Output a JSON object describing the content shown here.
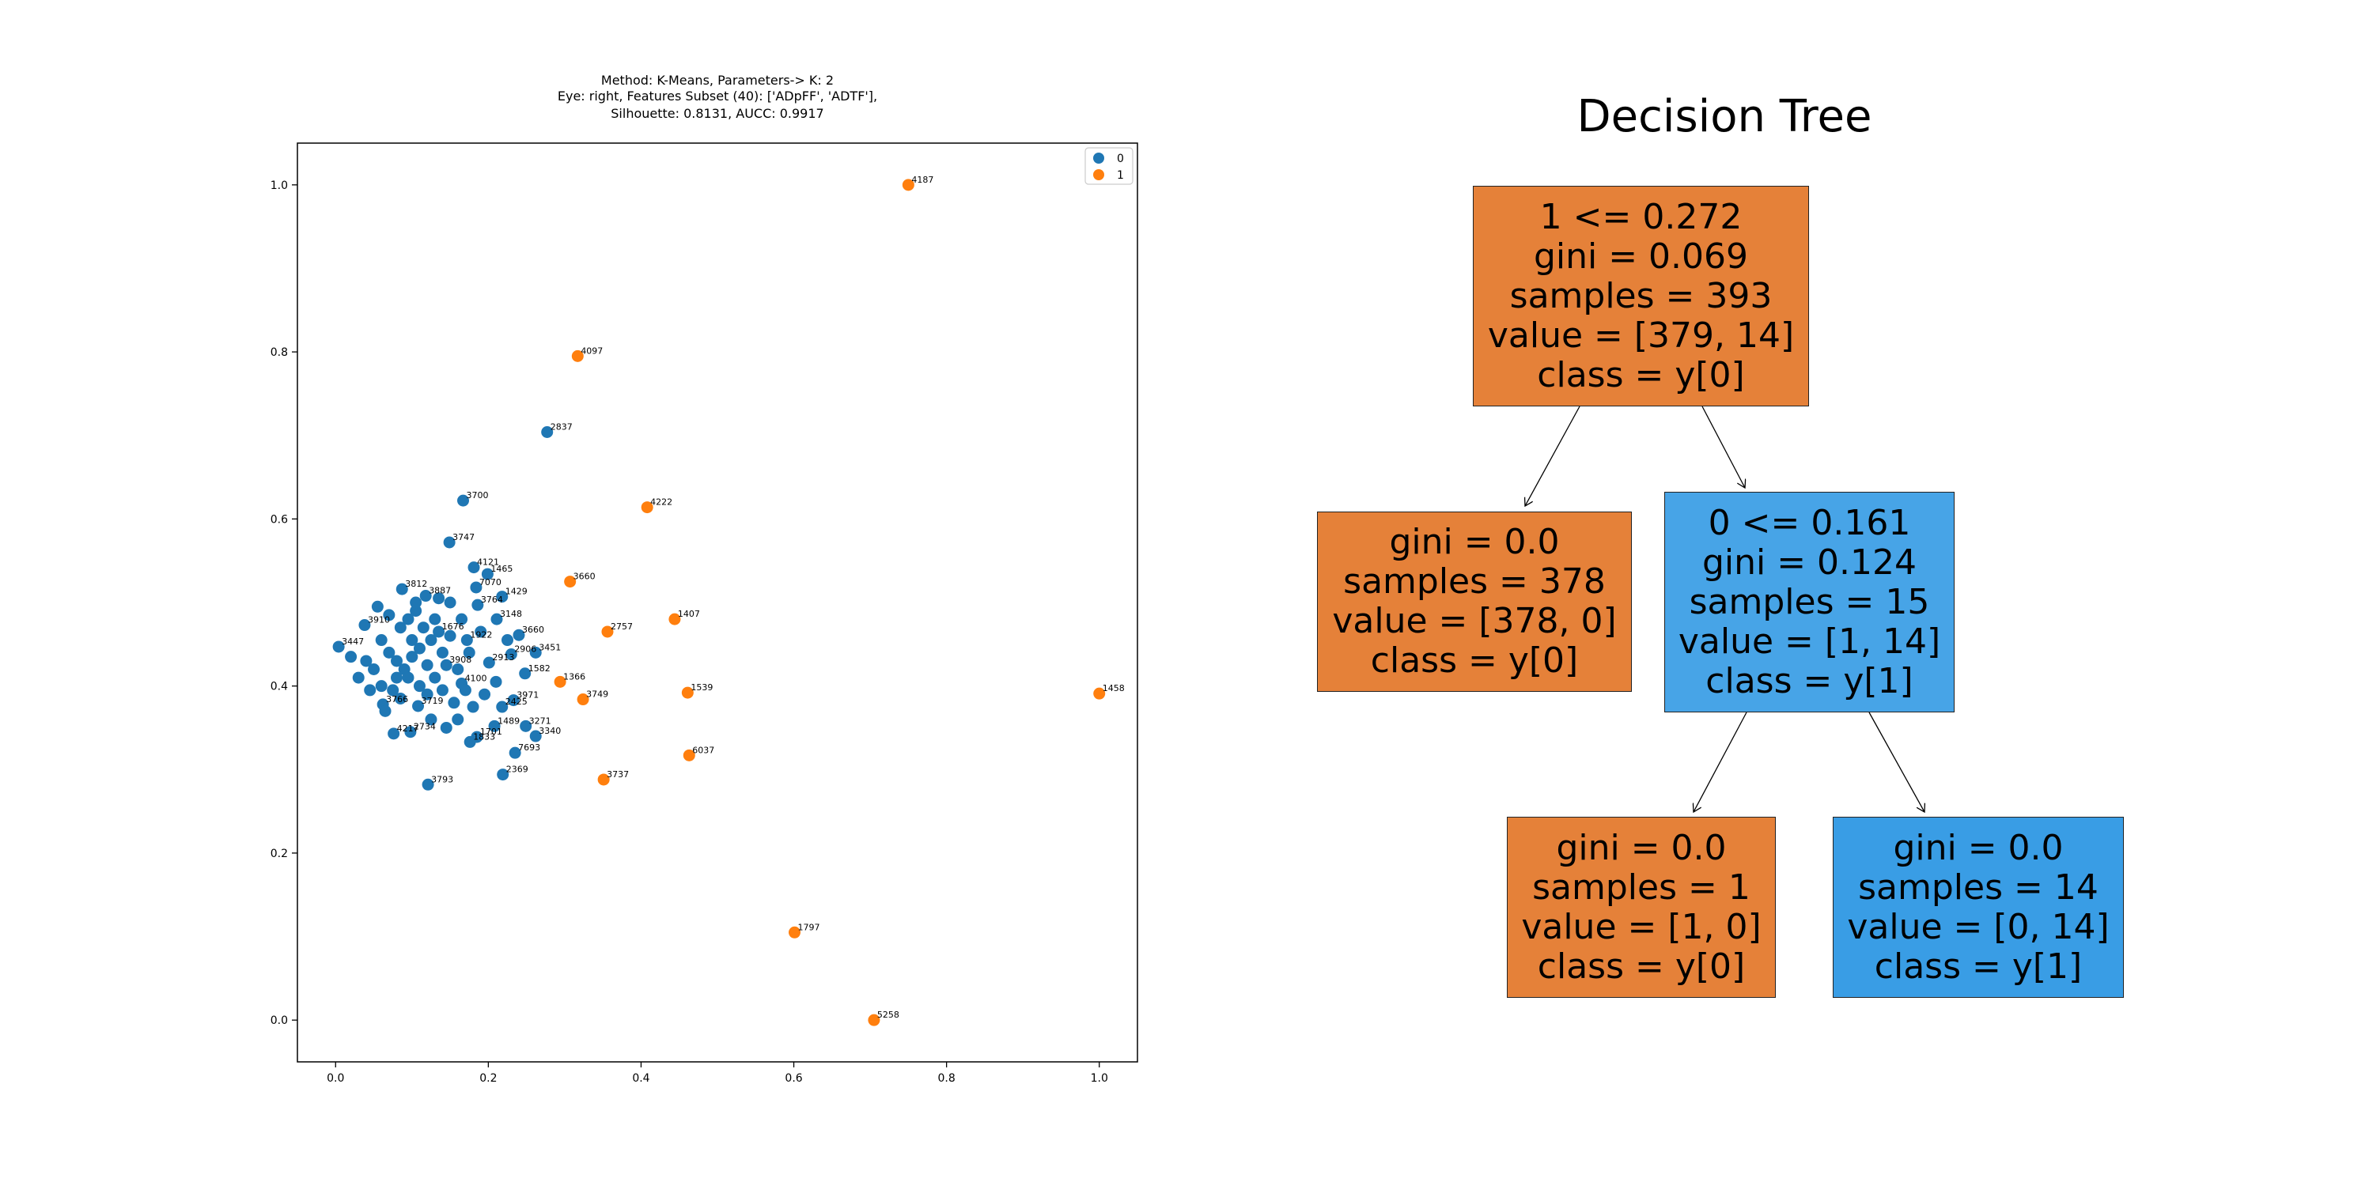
{
  "chart_data": [
    {
      "type": "scatter",
      "title_lines": [
        "Method: K-Means, Parameters-> K: 2",
        "Eye: right, Features Subset (40): ['ADpFF', 'ADTF'],",
        "Silhouette: 0.8131, AUCC: 0.9917"
      ],
      "xlabel": "",
      "ylabel": "",
      "xlim": [
        -0.05,
        1.05
      ],
      "ylim": [
        -0.05,
        1.05
      ],
      "xticks": [
        "0.0",
        "0.2",
        "0.4",
        "0.6",
        "0.8",
        "1.0"
      ],
      "yticks": [
        "0.0",
        "0.2",
        "0.4",
        "0.6",
        "0.8",
        "1.0"
      ],
      "legend": {
        "position": "top-right",
        "entries": [
          "0",
          "1"
        ]
      },
      "colors": {
        "0": "#1f77b4",
        "1": "#ff7f0e"
      },
      "grid": false,
      "series": [
        {
          "name": "0",
          "points": [
            {
              "x": 0.277,
              "y": 0.704,
              "label": "2837"
            },
            {
              "x": 0.167,
              "y": 0.622,
              "label": "3700"
            },
            {
              "x": 0.149,
              "y": 0.572,
              "label": "3747"
            },
            {
              "x": 0.181,
              "y": 0.542,
              "label": "4121"
            },
            {
              "x": 0.199,
              "y": 0.534,
              "label": "1465"
            },
            {
              "x": 0.184,
              "y": 0.518,
              "label": "7070"
            },
            {
              "x": 0.218,
              "y": 0.507,
              "label": "1429"
            },
            {
              "x": 0.087,
              "y": 0.516,
              "label": "3812"
            },
            {
              "x": 0.118,
              "y": 0.508,
              "label": "3887"
            },
            {
              "x": 0.211,
              "y": 0.48,
              "label": "3148"
            },
            {
              "x": 0.24,
              "y": 0.461,
              "label": "3660"
            },
            {
              "x": 0.262,
              "y": 0.44,
              "label": "3451"
            },
            {
              "x": 0.248,
              "y": 0.415,
              "label": "1582"
            },
            {
              "x": 0.233,
              "y": 0.383,
              "label": "3971"
            },
            {
              "x": 0.218,
              "y": 0.375,
              "label": "2425"
            },
            {
              "x": 0.249,
              "y": 0.352,
              "label": "3271"
            },
            {
              "x": 0.262,
              "y": 0.34,
              "label": "3340"
            },
            {
              "x": 0.208,
              "y": 0.352,
              "label": "1489"
            },
            {
              "x": 0.235,
              "y": 0.32,
              "label": "7693"
            },
            {
              "x": 0.176,
              "y": 0.333,
              "label": "1833"
            },
            {
              "x": 0.219,
              "y": 0.294,
              "label": "2369"
            },
            {
              "x": 0.121,
              "y": 0.282,
              "label": "3793"
            },
            {
              "x": 0.076,
              "y": 0.343,
              "label": "4217"
            },
            {
              "x": 0.098,
              "y": 0.345,
              "label": "2734"
            },
            {
              "x": 0.165,
              "y": 0.403,
              "label": "4100"
            },
            {
              "x": 0.145,
              "y": 0.425,
              "label": "3908"
            },
            {
              "x": 0.135,
              "y": 0.465,
              "label": "1676"
            },
            {
              "x": 0.172,
              "y": 0.455,
              "label": "1922"
            },
            {
              "x": 0.038,
              "y": 0.473,
              "label": "3910"
            },
            {
              "x": 0.004,
              "y": 0.447,
              "label": "3447"
            },
            {
              "x": 0.062,
              "y": 0.378,
              "label": "3766"
            },
            {
              "x": 0.108,
              "y": 0.376,
              "label": "3719"
            },
            {
              "x": 0.201,
              "y": 0.428,
              "label": "2913"
            },
            {
              "x": 0.186,
              "y": 0.497,
              "label": "3764"
            },
            {
              "x": 0.23,
              "y": 0.438,
              "label": "2906"
            },
            {
              "x": 0.185,
              "y": 0.339,
              "label": "1701"
            },
            {
              "x": 0.06,
              "y": 0.455
            },
            {
              "x": 0.07,
              "y": 0.44
            },
            {
              "x": 0.08,
              "y": 0.43
            },
            {
              "x": 0.09,
              "y": 0.42
            },
            {
              "x": 0.1,
              "y": 0.435
            },
            {
              "x": 0.11,
              "y": 0.445
            },
            {
              "x": 0.12,
              "y": 0.425
            },
            {
              "x": 0.13,
              "y": 0.41
            },
            {
              "x": 0.14,
              "y": 0.44
            },
            {
              "x": 0.05,
              "y": 0.42
            },
            {
              "x": 0.04,
              "y": 0.43
            },
            {
              "x": 0.03,
              "y": 0.41
            },
            {
              "x": 0.06,
              "y": 0.4
            },
            {
              "x": 0.075,
              "y": 0.395
            },
            {
              "x": 0.085,
              "y": 0.47
            },
            {
              "x": 0.095,
              "y": 0.48
            },
            {
              "x": 0.105,
              "y": 0.49
            },
            {
              "x": 0.115,
              "y": 0.47
            },
            {
              "x": 0.125,
              "y": 0.455
            },
            {
              "x": 0.14,
              "y": 0.395
            },
            {
              "x": 0.155,
              "y": 0.38
            },
            {
              "x": 0.16,
              "y": 0.36
            },
            {
              "x": 0.145,
              "y": 0.35
            },
            {
              "x": 0.125,
              "y": 0.36
            },
            {
              "x": 0.11,
              "y": 0.4
            },
            {
              "x": 0.095,
              "y": 0.41
            },
            {
              "x": 0.07,
              "y": 0.485
            },
            {
              "x": 0.055,
              "y": 0.495
            },
            {
              "x": 0.15,
              "y": 0.5
            },
            {
              "x": 0.165,
              "y": 0.48
            },
            {
              "x": 0.175,
              "y": 0.44
            },
            {
              "x": 0.19,
              "y": 0.465
            },
            {
              "x": 0.195,
              "y": 0.39
            },
            {
              "x": 0.18,
              "y": 0.375
            },
            {
              "x": 0.02,
              "y": 0.435
            },
            {
              "x": 0.045,
              "y": 0.395
            },
            {
              "x": 0.065,
              "y": 0.37
            },
            {
              "x": 0.085,
              "y": 0.385
            },
            {
              "x": 0.1,
              "y": 0.455
            },
            {
              "x": 0.13,
              "y": 0.48
            },
            {
              "x": 0.15,
              "y": 0.46
            },
            {
              "x": 0.16,
              "y": 0.42
            },
            {
              "x": 0.12,
              "y": 0.39
            },
            {
              "x": 0.08,
              "y": 0.41
            },
            {
              "x": 0.21,
              "y": 0.405
            },
            {
              "x": 0.225,
              "y": 0.455
            },
            {
              "x": 0.17,
              "y": 0.395
            },
            {
              "x": 0.135,
              "y": 0.505
            },
            {
              "x": 0.105,
              "y": 0.5
            }
          ]
        },
        {
          "name": "1",
          "points": [
            {
              "x": 0.75,
              "y": 1.0,
              "label": "4187"
            },
            {
              "x": 0.317,
              "y": 0.795,
              "label": "4097"
            },
            {
              "x": 0.408,
              "y": 0.614,
              "label": "4222"
            },
            {
              "x": 0.307,
              "y": 0.525,
              "label": "3660"
            },
            {
              "x": 0.444,
              "y": 0.48,
              "label": "1407"
            },
            {
              "x": 0.356,
              "y": 0.465,
              "label": "2757"
            },
            {
              "x": 0.294,
              "y": 0.405,
              "label": "1366"
            },
            {
              "x": 0.324,
              "y": 0.384,
              "label": "3749"
            },
            {
              "x": 0.461,
              "y": 0.392,
              "label": "1539"
            },
            {
              "x": 0.463,
              "y": 0.317,
              "label": "6037"
            },
            {
              "x": 0.351,
              "y": 0.288,
              "label": "3737"
            },
            {
              "x": 1.0,
              "y": 0.391,
              "label": "1458"
            },
            {
              "x": 0.601,
              "y": 0.105,
              "label": "1797"
            },
            {
              "x": 0.705,
              "y": 0.0,
              "label": "5258"
            }
          ]
        }
      ]
    }
  ],
  "tree": {
    "title": "Decision Tree",
    "nodes": {
      "root": {
        "lines": [
          "1 <= 0.272",
          "gini = 0.069",
          "samples = 393",
          "value = [379, 14]",
          "class = y[0]"
        ]
      },
      "left": {
        "lines": [
          "gini = 0.0",
          "samples = 378",
          "value = [378, 0]",
          "class = y[0]"
        ]
      },
      "right": {
        "lines": [
          "0 <= 0.161",
          "gini = 0.124",
          "samples = 15",
          "value = [1, 14]",
          "class = y[1]"
        ]
      },
      "right_left": {
        "lines": [
          "gini = 0.0",
          "samples = 1",
          "value = [1, 0]",
          "class = y[0]"
        ]
      },
      "right_right": {
        "lines": [
          "gini = 0.0",
          "samples = 14",
          "value = [0, 14]",
          "class = y[1]"
        ]
      }
    },
    "colors": {
      "orange": "#e58139",
      "blue_light": "#47a4e7",
      "blue": "#399de5"
    }
  }
}
